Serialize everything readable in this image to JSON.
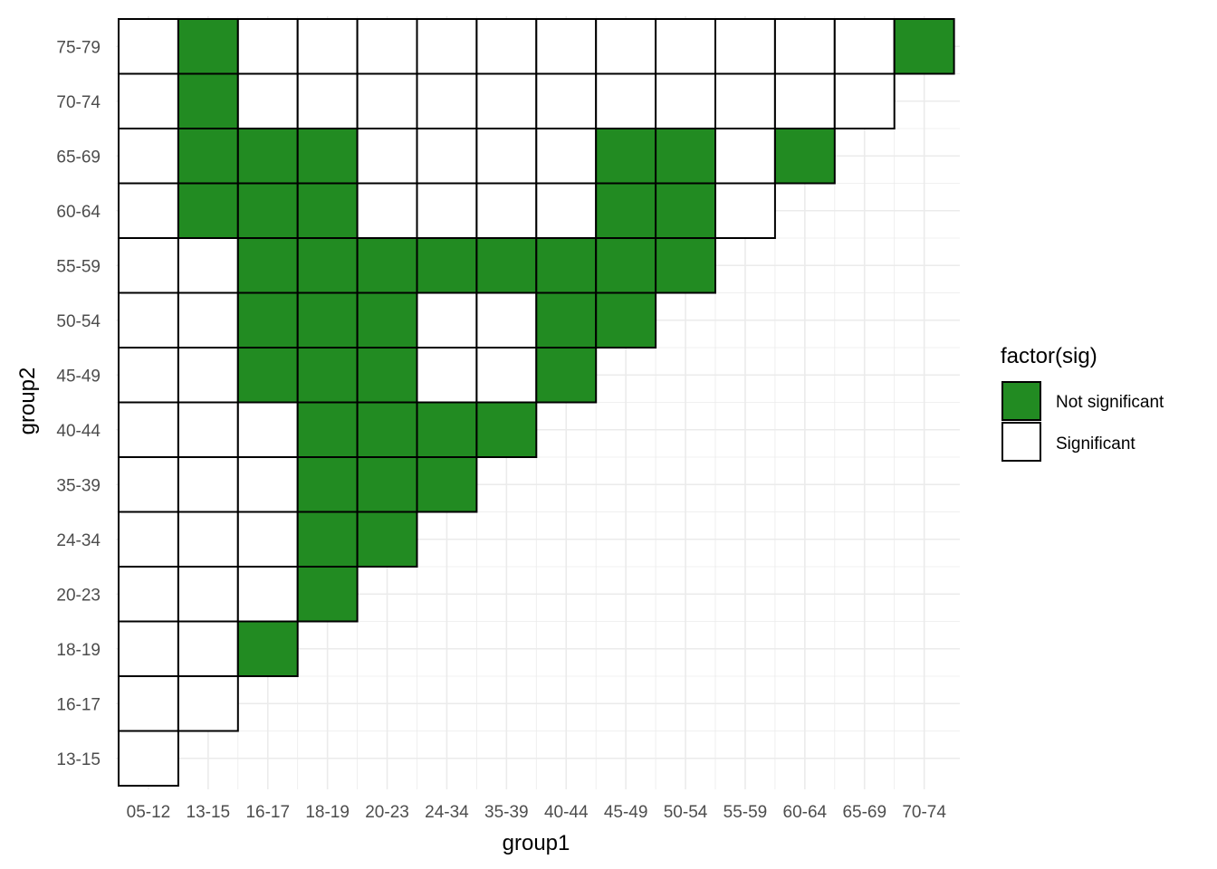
{
  "chart_data": {
    "type": "heatmap",
    "xlabel": "group1",
    "ylabel": "group2",
    "x_categories": [
      "05-12",
      "13-15",
      "16-17",
      "18-19",
      "20-23",
      "24-34",
      "35-39",
      "40-44",
      "45-49",
      "50-54",
      "55-59",
      "60-64",
      "65-69",
      "70-74"
    ],
    "y_categories": [
      "13-15",
      "16-17",
      "18-19",
      "20-23",
      "24-34",
      "35-39",
      "40-44",
      "45-49",
      "50-54",
      "55-59",
      "60-64",
      "65-69",
      "70-74",
      "75-79"
    ],
    "not_significant": {
      "05-12": [],
      "13-15": [
        "60-64",
        "65-69",
        "70-74",
        "75-79"
      ],
      "16-17": [
        "18-19",
        "45-49",
        "50-54",
        "55-59",
        "60-64",
        "65-69"
      ],
      "18-19": [
        "20-23",
        "24-34",
        "35-39",
        "40-44",
        "45-49",
        "50-54",
        "55-59",
        "60-64",
        "65-69"
      ],
      "20-23": [
        "24-34",
        "35-39",
        "40-44",
        "45-49",
        "50-54",
        "55-59"
      ],
      "24-34": [
        "35-39",
        "40-44",
        "55-59"
      ],
      "35-39": [
        "40-44",
        "55-59"
      ],
      "40-44": [
        "45-49",
        "50-54",
        "55-59"
      ],
      "45-49": [
        "50-54",
        "55-59",
        "60-64",
        "65-69"
      ],
      "50-54": [
        "55-59",
        "60-64",
        "65-69"
      ],
      "55-59": [],
      "60-64": [
        "65-69"
      ],
      "65-69": [],
      "70-74": [
        "75-79"
      ]
    },
    "legend": {
      "title": "factor(sig)",
      "position": "right",
      "items": [
        {
          "label": "Not significant",
          "color": "#228B22"
        },
        {
          "label": "Significant",
          "color": "#FFFFFF"
        }
      ]
    },
    "grid": true,
    "colors": {
      "not_significant": "#228B22",
      "significant": "#FFFFFF",
      "tile_border": "#000000",
      "grid": "#EBEBEB"
    }
  }
}
